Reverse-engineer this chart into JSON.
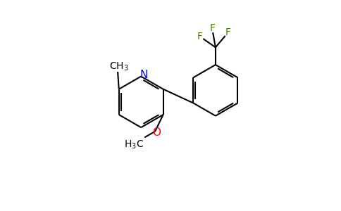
{
  "background_color": "#ffffff",
  "bond_color": "#000000",
  "nitrogen_color": "#0000ff",
  "oxygen_color": "#ff0000",
  "fluorine_color": "#4a7a00",
  "figsize": [
    4.84,
    3.0
  ],
  "dpi": 100,
  "xlim": [
    -1.0,
    9.5
  ],
  "ylim": [
    -0.5,
    6.5
  ]
}
